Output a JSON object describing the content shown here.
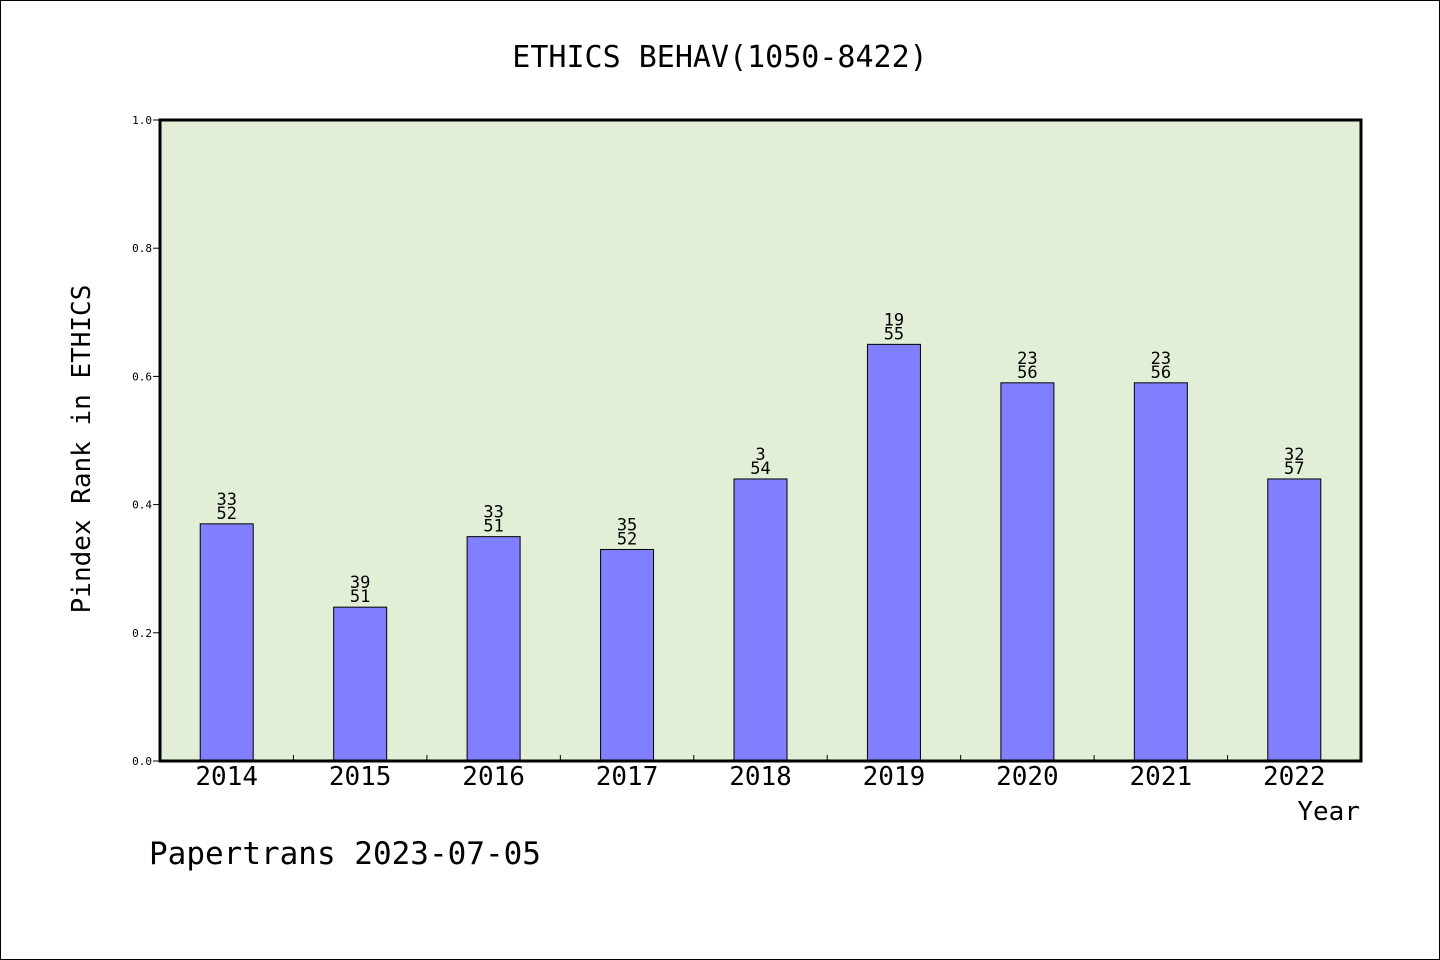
{
  "chart_data": {
    "type": "bar",
    "title": "ETHICS BEHAV(1050-8422)",
    "xlabel": "Year",
    "ylabel": "Pindex Rank in ETHICS",
    "ylim": [
      0.0,
      1.0
    ],
    "yticks": [
      "0.0",
      "0.2",
      "0.4",
      "0.6",
      "0.8",
      "1.0"
    ],
    "categories": [
      "2014",
      "2015",
      "2016",
      "2017",
      "2018",
      "2019",
      "2020",
      "2021",
      "2022"
    ],
    "values": [
      0.37,
      0.24,
      0.35,
      0.33,
      0.44,
      0.65,
      0.59,
      0.59,
      0.44
    ],
    "label_top": [
      "33",
      "39",
      "33",
      "35",
      "3",
      "19",
      "23",
      "23",
      "32"
    ],
    "label_bottom": [
      "52",
      "51",
      "51",
      "52",
      "54",
      "55",
      "56",
      "56",
      "57"
    ],
    "grid": false,
    "legend": "none"
  },
  "footer": "Papertrans 2023-07-05",
  "colors": {
    "plot_background": "#e2efd6",
    "bar_fill": "#8080ff",
    "bar_stroke": "#000000",
    "frame": "#000000"
  }
}
